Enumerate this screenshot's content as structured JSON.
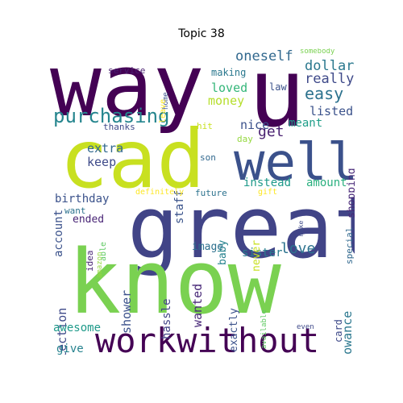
{
  "title": "Topic 38",
  "words": {
    "way": {
      "text": "way",
      "color": "#440154"
    },
    "u": {
      "text": "u",
      "color": "#440154"
    },
    "cad": {
      "text": "cad",
      "color": "#c8e020"
    },
    "well": {
      "text": "well",
      "color": "#3b518b"
    },
    "great": {
      "text": "great",
      "color": "#414487"
    },
    "know": {
      "text": "know",
      "color": "#7ad151"
    },
    "workwithout": {
      "text": "workwithout",
      "color": "#440154"
    },
    "purchasing": {
      "text": "purchasing",
      "color": "#25858e"
    },
    "oneself": {
      "text": "oneself",
      "color": "#31688e"
    },
    "dollar": {
      "text": "dollar",
      "color": "#2a788e"
    },
    "really": {
      "text": "really",
      "color": "#3e4989"
    },
    "easy": {
      "text": "easy",
      "color": "#2c728e"
    },
    "listed": {
      "text": "listed",
      "color": "#3b528b"
    },
    "loved": {
      "text": "loved",
      "color": "#34b679"
    },
    "money": {
      "text": "money",
      "color": "#b5de2b"
    },
    "get": {
      "text": "get",
      "color": "#481f70"
    },
    "nice": {
      "text": "nice",
      "color": "#3b518b"
    },
    "meant": {
      "text": "meant",
      "color": "#1f9e89"
    },
    "extra": {
      "text": "extra",
      "color": "#31688e"
    },
    "keep": {
      "text": "keep",
      "color": "#3e4a89"
    },
    "staff": {
      "text": "staff",
      "color": "#3a538b"
    },
    "instead": {
      "text": "instead",
      "color": "#1f9a8a"
    },
    "amount": {
      "text": "amount",
      "color": "#2ab07f"
    },
    "account": {
      "text": "account",
      "color": "#3b528b"
    },
    "birthday": {
      "text": "birthday",
      "color": "#3b528b"
    },
    "want": {
      "text": "want",
      "color": "#2c728e"
    },
    "ended": {
      "text": "ended",
      "color": "#482475"
    },
    "love": {
      "text": "love",
      "color": "#2c728e"
    },
    "sister": {
      "text": "sister",
      "color": "#287d8e"
    },
    "image": {
      "text": "image",
      "color": "#2d708e"
    },
    "baby": {
      "text": "baby",
      "color": "#26828e"
    },
    "never": {
      "text": "never",
      "color": "#c8e020"
    },
    "collection": {
      "text": "collection",
      "color": "#3e4989"
    },
    "allowance": {
      "text": "allowance",
      "color": "#2a778e"
    },
    "shower": {
      "text": "shower",
      "color": "#3b518b"
    },
    "hassle": {
      "text": "hassle",
      "color": "#414487"
    },
    "wanted": {
      "text": "wanted",
      "color": "#482878"
    },
    "exactly": {
      "text": "exactly",
      "color": "#3b528b"
    },
    "awesome": {
      "text": "awesome",
      "color": "#1f9a8a"
    },
    "give": {
      "text": "give",
      "color": "#26828e"
    },
    "card": {
      "text": "card",
      "color": "#3e4a89"
    },
    "shopping": {
      "text": "shopping",
      "color": "#482878"
    },
    "special": {
      "text": "special",
      "color": "#31688e"
    },
    "service": {
      "text": "service",
      "color": "#481f70"
    },
    "home": {
      "text": "home",
      "color": "#3b528b"
    },
    "making": {
      "text": "making",
      "color": "#2a788e"
    },
    "law": {
      "text": "law",
      "color": "#3b528b"
    },
    "somebody": {
      "text": "somebody",
      "color": "#7ad151"
    },
    "leave": {
      "text": "leave",
      "color": "#fde725"
    },
    "thanks": {
      "text": "thanks",
      "color": "#3e4989"
    },
    "hit": {
      "text": "hit",
      "color": "#c8e020"
    },
    "day": {
      "text": "day",
      "color": "#95d840"
    },
    "son": {
      "text": "son",
      "color": "#31688e"
    },
    "definitely": {
      "text": "definitely",
      "color": "#fde725"
    },
    "future": {
      "text": "future",
      "color": "#2c728e"
    },
    "gift": {
      "text": "gift",
      "color": "#fde725"
    },
    "make": {
      "text": "make",
      "color": "#3e4a89"
    },
    "idea": {
      "text": "idea",
      "color": "#482475"
    },
    "able": {
      "text": "able",
      "color": "#5ec962"
    },
    "amazon": {
      "text": "amazon",
      "color": "#95d840"
    },
    "available": {
      "text": "available",
      "color": "#5ec962"
    },
    "even": {
      "text": "even",
      "color": "#3e4989"
    }
  }
}
